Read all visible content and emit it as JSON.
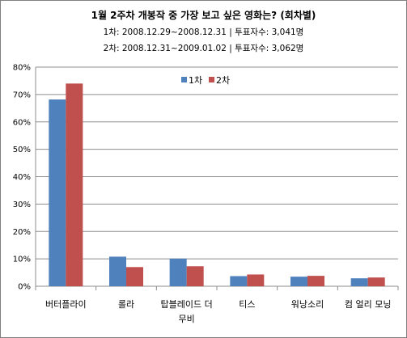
{
  "chart_data": {
    "type": "bar",
    "title": "1월 2주차 개봉작 중 가장 보고 싶은 영화는? (회차별)",
    "subtitle_lines": [
      "1차: 2008.12.29~2008.12.31 | 투표자수: 3,041명",
      "2차: 2008.12.31~2009.01.02 | 투표자수: 3,062명"
    ],
    "categories": [
      "버터플라이",
      "롤라",
      [
        "탑블레이드 더",
        "무비"
      ],
      "티스",
      "워낭소리",
      "컴 얼리 모닝"
    ],
    "series": [
      {
        "name": "1차",
        "color": "#4f81bd",
        "values": [
          68.2,
          10.8,
          10.1,
          3.7,
          3.5,
          2.9
        ]
      },
      {
        "name": "2차",
        "color": "#c0504d",
        "values": [
          74.0,
          7.0,
          7.3,
          4.3,
          3.8,
          3.2
        ]
      }
    ],
    "ylim": [
      0,
      80
    ],
    "yticks": [
      "0%",
      "10%",
      "20%",
      "30%",
      "40%",
      "50%",
      "60%",
      "70%",
      "80%"
    ],
    "grid": true,
    "legend_position": "top-right"
  }
}
